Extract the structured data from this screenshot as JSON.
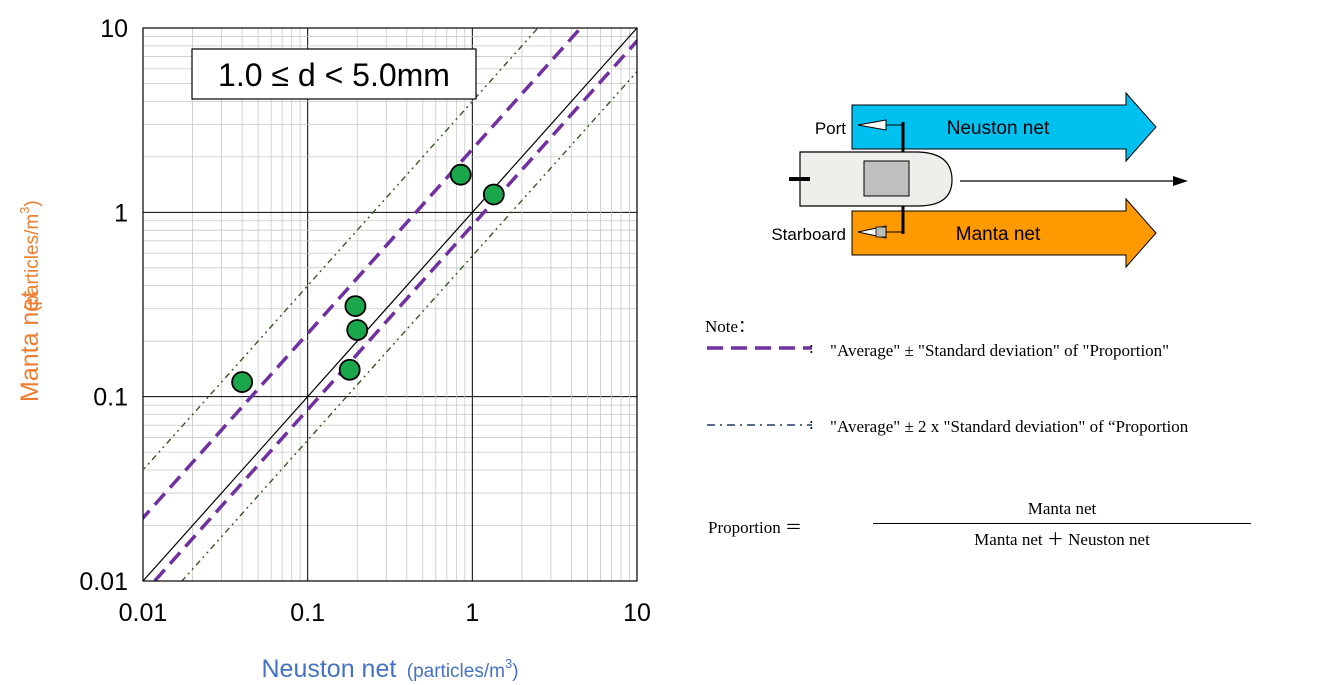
{
  "chart_data": {
    "type": "scatter",
    "x_scale": "log",
    "y_scale": "log",
    "xlim": [
      0.01,
      10
    ],
    "ylim": [
      0.01,
      10
    ],
    "x_ticks": [
      "0.01",
      "0.1",
      "1",
      "10"
    ],
    "y_ticks": [
      "0.01",
      "0.1",
      "1",
      "10"
    ],
    "xlabel": "Neuston net",
    "xlabel_unit": "(particles/m",
    "xlabel_unit_sup": "3",
    "xlabel_unit_close": ")",
    "ylabel": "Manta net",
    "ylabel_unit": "(particles/m",
    "ylabel_unit_sup": "3",
    "ylabel_unit_close": ")",
    "annotation": "1.0 ≤ d < 5.0mm",
    "grid": true,
    "points": [
      {
        "x": 0.04,
        "y": 0.12
      },
      {
        "x": 0.18,
        "y": 0.14
      },
      {
        "x": 0.195,
        "y": 0.31
      },
      {
        "x": 0.2,
        "y": 0.23
      },
      {
        "x": 0.85,
        "y": 1.6
      },
      {
        "x": 1.35,
        "y": 1.25
      }
    ],
    "lines": [
      {
        "style": "solid",
        "color": "#000000",
        "factor": 1.0
      },
      {
        "style": "dashed",
        "color": "#7030a0",
        "factor": 2.2
      },
      {
        "style": "dashed",
        "color": "#7030a0",
        "factor": 0.85
      },
      {
        "style": "dashdotdot",
        "color": "#375623",
        "factor": 4.0
      },
      {
        "style": "dashdotdot",
        "color": "#375623",
        "factor": 0.58
      }
    ],
    "colors": {
      "point_fill": "#1aa64a",
      "axis_label_x": "#4472c4",
      "axis_label_y": "#ed7d31"
    }
  },
  "diagram": {
    "port_label": "Port",
    "starboard_label": "Starboard",
    "neuston_net_label": "Neuston net",
    "manta_net_label": "Manta net",
    "neuston_color": "#00c0f0",
    "manta_color": "#ff9900"
  },
  "note": {
    "title": "Note：",
    "row1_text": "\"Average\" ± \"Standard deviation\" of \"Proportion\"",
    "row2_text": "\"Average\" ± 2 x \"Standard deviation\" of “Proportion",
    "colon": ":"
  },
  "formula": {
    "lhs": "Proportion ＝",
    "numerator": "Manta net",
    "denominator": "Manta net ＋ Neuston net"
  }
}
